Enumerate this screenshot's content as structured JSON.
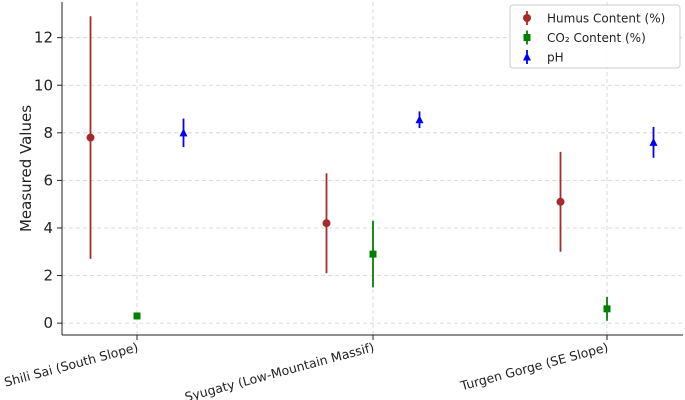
{
  "chart_data": {
    "type": "errorbar",
    "title": "",
    "xlabel": "",
    "ylabel": "Measured Values",
    "ylim": [
      -0.5,
      13.5
    ],
    "yticks": [
      0,
      2,
      4,
      6,
      8,
      10,
      12
    ],
    "grid": true,
    "legend_position": "top-right",
    "categories": [
      "Shili Sai (South Slope)",
      "Syugaty (Low-Mountain Massif)",
      "Turgen Gorge (SE Slope)"
    ],
    "series": [
      {
        "name": "Humus Content (%)",
        "color": "#a52a2a",
        "marker": "circle",
        "offset": -1,
        "values": [
          7.8,
          4.2,
          5.1
        ],
        "errors": [
          5.1,
          2.1,
          2.1
        ]
      },
      {
        "name": "CO₂ Content (%)",
        "color": "#008000",
        "marker": "square",
        "offset": 0,
        "values": [
          0.3,
          2.9,
          0.6
        ],
        "errors": [
          0.0,
          1.4,
          0.5
        ]
      },
      {
        "name": "pH",
        "color": "#0000ff",
        "marker": "triangle",
        "offset": 1,
        "values": [
          8.0,
          8.55,
          7.6
        ],
        "errors": [
          0.6,
          0.35,
          0.65
        ]
      }
    ]
  }
}
